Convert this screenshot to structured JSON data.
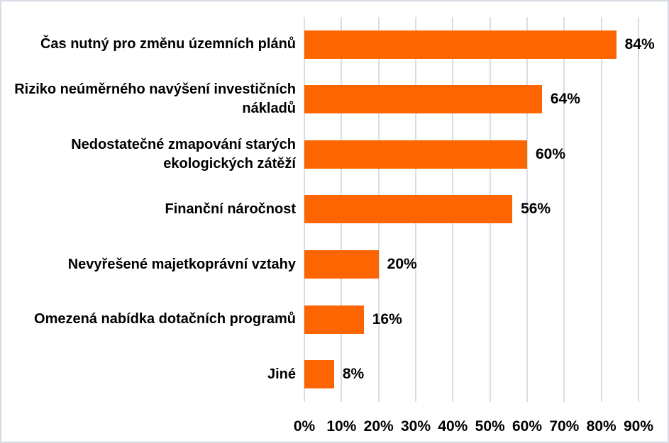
{
  "chart_data": {
    "type": "bar",
    "orientation": "horizontal",
    "title": "",
    "categories": [
      "Čas nutný pro změnu územních plánů",
      "Riziko neúměrného navýšení investičních nákladů",
      "Nedostatečné zmapování starých ekologických zátěží",
      "Finanční náročnost",
      "Nevyřešené majetkoprávní vztahy",
      "Omezená nabídka dotačních programů",
      "Jiné"
    ],
    "values": [
      84,
      64,
      60,
      56,
      20,
      16,
      8
    ],
    "value_labels": [
      "84%",
      "64%",
      "60%",
      "56%",
      "20%",
      "16%",
      "8%"
    ],
    "x_tick_labels": [
      "0%",
      "10%",
      "20%",
      "30%",
      "40%",
      "50%",
      "60%",
      "70%",
      "80%",
      "90%"
    ],
    "xlim": [
      0,
      90
    ],
    "x_tick_step": 10,
    "grid": true,
    "legend": false,
    "data_labels": true,
    "colors": {
      "bar": "#FC6500",
      "gridline": "#D9DDE4",
      "background": "#FFFFFF",
      "border": "#D7DBE3",
      "text": "#000000"
    }
  }
}
